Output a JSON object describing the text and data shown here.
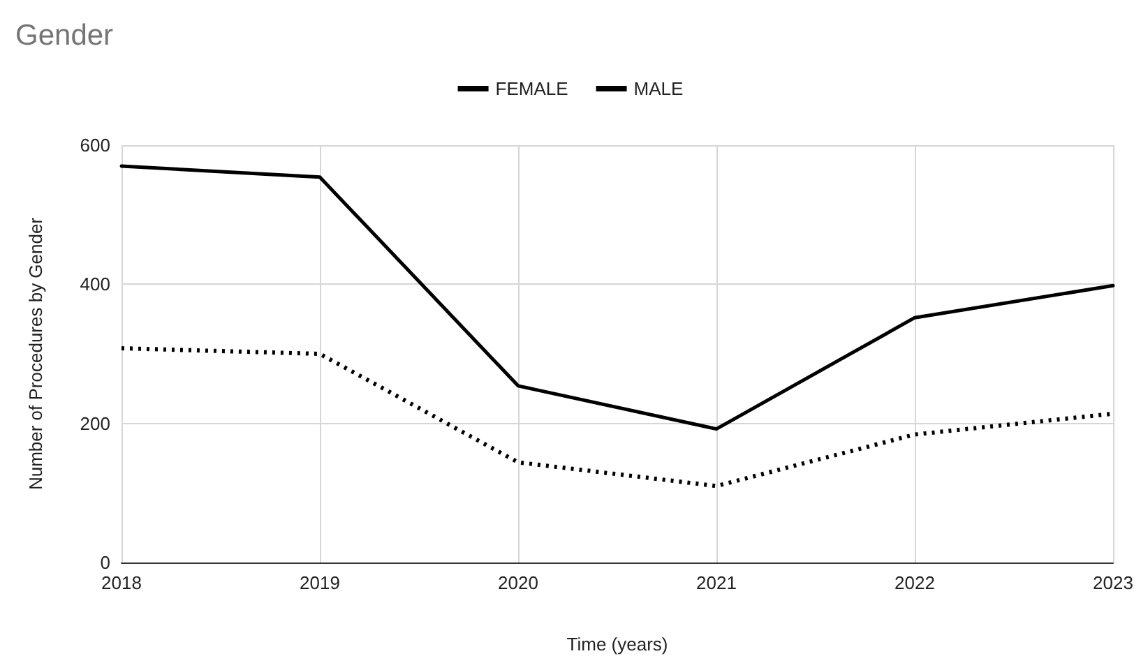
{
  "chart_data": {
    "type": "line",
    "title": "Gender",
    "xlabel": "Time (years)",
    "ylabel": "Number of Procedures by Gender",
    "x": [
      2018,
      2019,
      2020,
      2021,
      2022,
      2023
    ],
    "xlim": [
      2018,
      2023
    ],
    "xticks": [
      2018,
      2019,
      2020,
      2021,
      2022,
      2023
    ],
    "ylim": [
      0,
      600
    ],
    "yticks": [
      0,
      200,
      400,
      600
    ],
    "grid": true,
    "legend": "top",
    "marker": "none",
    "series": [
      {
        "name": "FEMALE",
        "color": "#000000",
        "line_style": "solid",
        "values": [
          570,
          554,
          254,
          192,
          352,
          398
        ]
      },
      {
        "name": "MALE",
        "color": "#000000",
        "line_style": "dotted",
        "values": [
          308,
          300,
          144,
          110,
          184,
          214
        ]
      }
    ]
  }
}
